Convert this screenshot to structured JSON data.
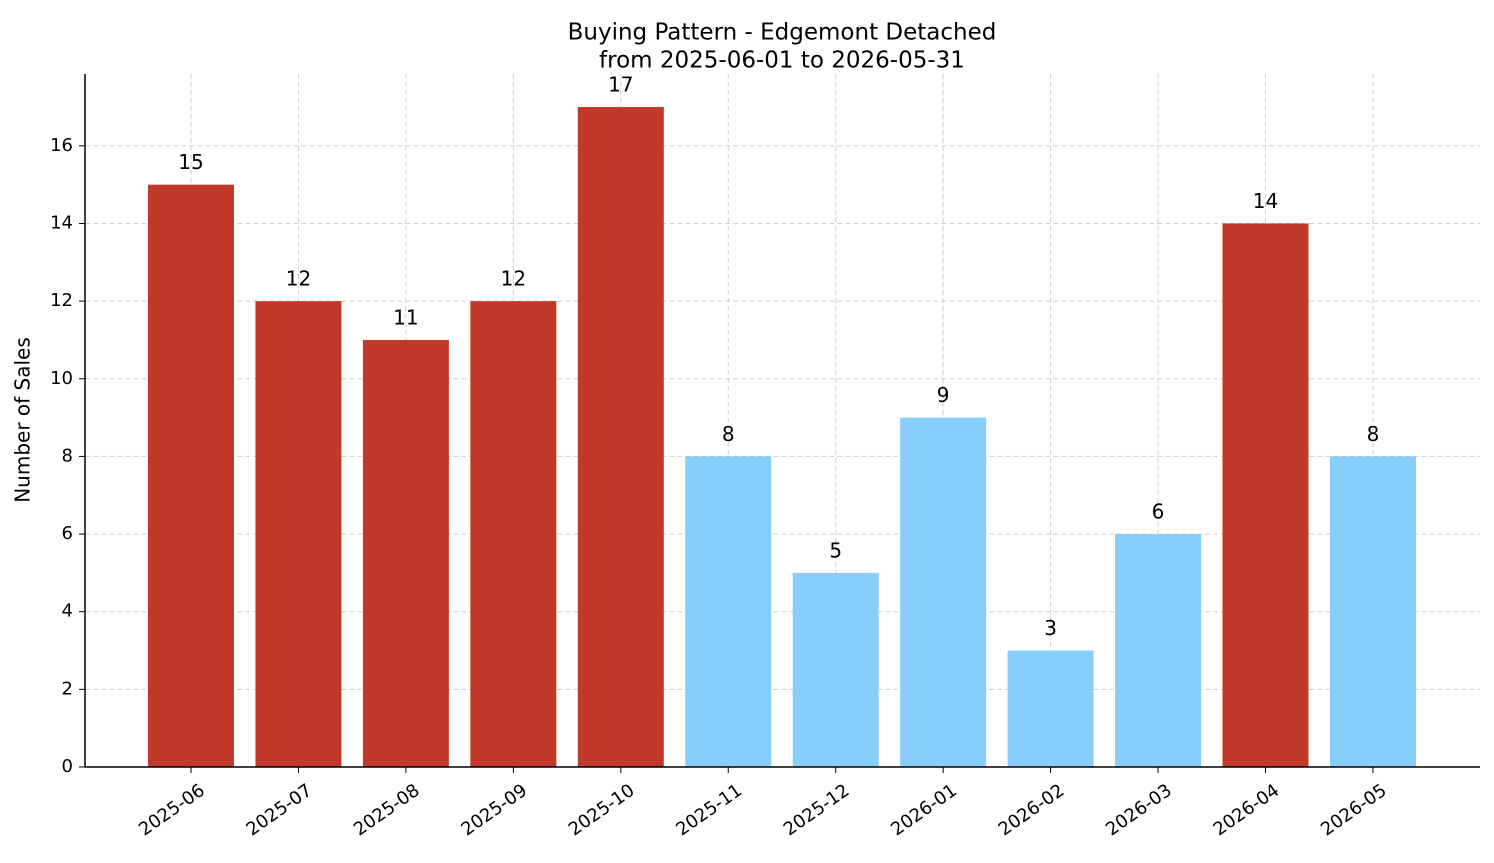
{
  "chart_data": {
    "type": "bar",
    "title": "Buying Pattern - Edgemont Detached",
    "subtitle": "from 2025-06-01 to 2026-05-31",
    "y_label": "Number of Sales",
    "categories": [
      "2025-06",
      "2025-07",
      "2025-08",
      "2025-09",
      "2025-10",
      "2025-11",
      "2025-12",
      "2026-01",
      "2026-02",
      "2026-03",
      "2026-04",
      "2026-05"
    ],
    "values": [
      15,
      12,
      11,
      12,
      17,
      8,
      5,
      9,
      3,
      6,
      14,
      8
    ],
    "colors": [
      "#c0392b",
      "#c0392b",
      "#c0392b",
      "#c0392b",
      "#c0392b",
      "#87cefa",
      "#87cefa",
      "#87cefa",
      "#87cefa",
      "#87cefa",
      "#c0392b",
      "#87cefa"
    ],
    "ylim": [
      0,
      17.85
    ],
    "yticks": [
      0,
      2,
      4,
      6,
      8,
      10,
      12,
      14,
      16
    ],
    "grid": true
  }
}
